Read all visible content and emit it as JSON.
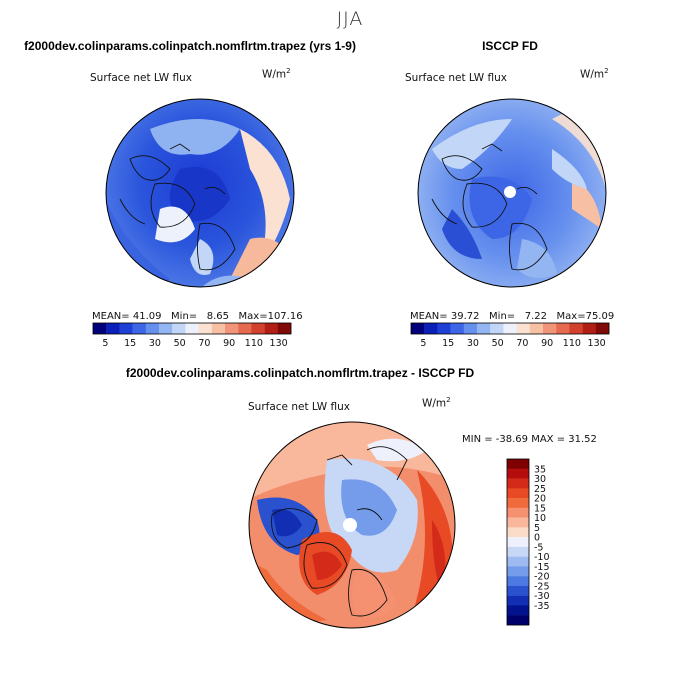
{
  "season": "JJA",
  "panels": [
    {
      "id": "model",
      "title": "f2000dev.colinparams.colinpatch.nomflrtm.trapez (yrs 1-9)",
      "subtitle": "Surface net LW flux",
      "units": "W/m",
      "units_exp": "2",
      "mean_label": "MEAN=",
      "mean": "41.09",
      "min_label": "Min=",
      "min": "8.65",
      "max_label": "Max=",
      "max": "107.16"
    },
    {
      "id": "obs",
      "title": "ISCCP FD",
      "subtitle": "Surface net LW flux",
      "units": "W/m",
      "units_exp": "2",
      "mean_label": "MEAN=",
      "mean": "39.72",
      "min_label": "Min=",
      "min": "7.22",
      "max_label": "Max=",
      "max": "75.09"
    },
    {
      "id": "diff",
      "title": "f2000dev.colinparams.colinpatch.nomflrtm.trapez - ISCCP FD",
      "subtitle": "Surface net LW flux",
      "units": "W/m",
      "units_exp": "2",
      "minmax_text": "MIN = -38.69 MAX =  31.52"
    }
  ],
  "chart_data": [
    {
      "type": "heatmap",
      "projection": "north-polar-stereographic",
      "title": "f2000dev.colinparams.colinpatch.nomflrtm.trapez (yrs 1-9)",
      "variable": "Surface net LW flux",
      "units": "W/m2",
      "stats": {
        "mean": 41.09,
        "min": 8.65,
        "max": 107.16
      },
      "colorbar": {
        "levels": [
          5,
          10,
          15,
          20,
          30,
          40,
          50,
          60,
          70,
          80,
          90,
          100,
          110,
          120,
          130
        ],
        "tick_labels": [
          "5",
          "15",
          "30",
          "50",
          "70",
          "90",
          "110",
          "130"
        ],
        "colors": [
          "#00007a",
          "#0a1fb8",
          "#1f40d6",
          "#3d66e6",
          "#6690ee",
          "#93b5f2",
          "#c2d6f7",
          "#edf1fb",
          "#fbe1d2",
          "#f7bfa4",
          "#f0957a",
          "#e66a50",
          "#d1412e",
          "#b01e16",
          "#7f0a08"
        ]
      }
    },
    {
      "type": "heatmap",
      "projection": "north-polar-stereographic",
      "title": "ISCCP FD",
      "variable": "Surface net LW flux",
      "units": "W/m2",
      "stats": {
        "mean": 39.72,
        "min": 7.22,
        "max": 75.09
      },
      "colorbar": {
        "levels": [
          5,
          10,
          15,
          20,
          30,
          40,
          50,
          60,
          70,
          80,
          90,
          100,
          110,
          120,
          130
        ],
        "tick_labels": [
          "5",
          "15",
          "30",
          "50",
          "70",
          "90",
          "110",
          "130"
        ],
        "colors": [
          "#00007a",
          "#0a1fb8",
          "#1f40d6",
          "#3d66e6",
          "#6690ee",
          "#93b5f2",
          "#c2d6f7",
          "#edf1fb",
          "#fbe1d2",
          "#f7bfa4",
          "#f0957a",
          "#e66a50",
          "#d1412e",
          "#b01e16",
          "#7f0a08"
        ]
      }
    },
    {
      "type": "heatmap",
      "projection": "north-polar-stereographic",
      "title": "f2000dev.colinparams.colinpatch.nomflrtm.trapez - ISCCP FD",
      "variable": "Surface net LW flux",
      "units": "W/m2",
      "stats": {
        "min": -38.69,
        "max": 31.52
      },
      "colorbar": {
        "orientation": "vertical",
        "tick_labels": [
          "35",
          "30",
          "25",
          "20",
          "15",
          "10",
          "5",
          "0",
          "-5",
          "-10",
          "-15",
          "-20",
          "-25",
          "-30",
          "-35"
        ],
        "colors": [
          "#7f0000",
          "#b50d0d",
          "#d42a1a",
          "#e84a26",
          "#f06b3c",
          "#f59070",
          "#f9b79b",
          "#fbdcc8",
          "#eef1fb",
          "#c7d8f6",
          "#9dbaf1",
          "#759ceb",
          "#4d7ae2",
          "#2a52cf",
          "#122eb3",
          "#03128d",
          "#00006a"
        ]
      }
    }
  ]
}
